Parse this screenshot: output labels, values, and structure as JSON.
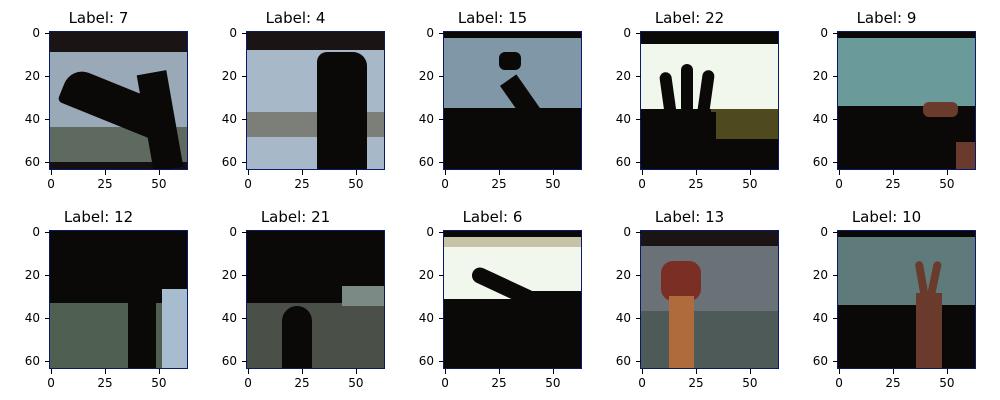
{
  "panels": [
    {
      "title": "Label: 7",
      "scene": "wall-hand-left"
    },
    {
      "title": "Label: 4",
      "scene": "wall-fist-up"
    },
    {
      "title": "Label: 15",
      "scene": "arm-pointing"
    },
    {
      "title": "Label: 22",
      "scene": "three-fingers"
    },
    {
      "title": "Label: 9",
      "scene": "hand-right-dark"
    },
    {
      "title": "Label: 12",
      "scene": "dark-arm-right"
    },
    {
      "title": "Label: 21",
      "scene": "dark-arm-center"
    },
    {
      "title": "Label: 6",
      "scene": "white-board-pointing"
    },
    {
      "title": "Label: 13",
      "scene": "raised-fist"
    },
    {
      "title": "Label: 10",
      "scene": "v-sign"
    }
  ],
  "y_ticks": [
    "0",
    "20",
    "40",
    "60"
  ],
  "x_ticks": [
    "0",
    "25",
    "50"
  ],
  "colors": {
    "wall": "#a7b6c6",
    "dark": "#0b0808",
    "board": "#f2f7ee",
    "frame": "#0a1a6a"
  }
}
